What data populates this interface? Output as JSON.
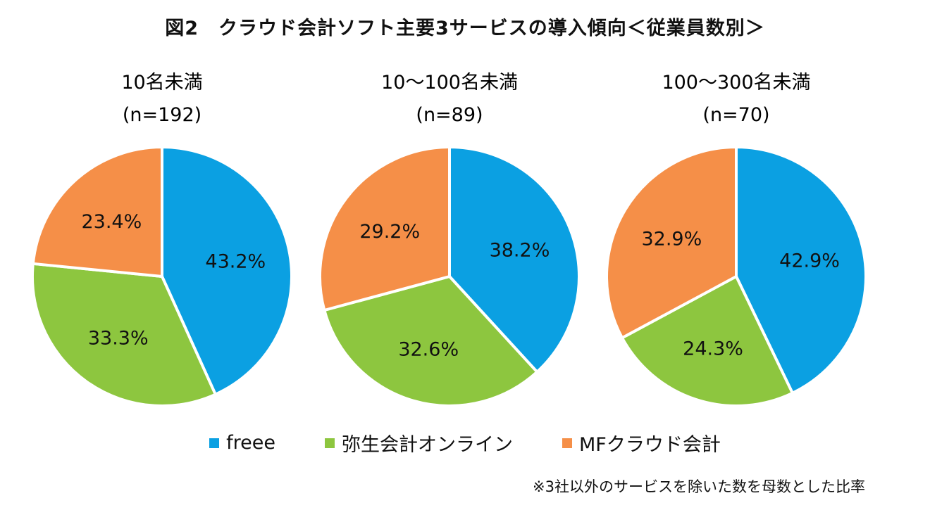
{
  "chart_data": {
    "type": "pie",
    "title": "図2　クラウド会計ソフト主要3サービスの導入傾向＜従業員数別＞",
    "series_names": [
      "freee",
      "弥生会計オンライン",
      "MFクラウド会計"
    ],
    "colors": [
      "#0ba0e2",
      "#8dc63f",
      "#f58f48"
    ],
    "legend_position": "bottom",
    "pies": [
      {
        "label": "10名未満",
        "n": "(n=192)",
        "values": [
          43.2,
          33.3,
          23.4
        ],
        "labels": [
          "43.2%",
          "33.3%",
          "23.4%"
        ]
      },
      {
        "label": "10～100名未満",
        "n": "(n=89)",
        "values": [
          38.2,
          32.6,
          29.2
        ],
        "labels": [
          "38.2%",
          "32.6%",
          "29.2%"
        ]
      },
      {
        "label": "100～300名未満",
        "n": "(n=70)",
        "values": [
          42.9,
          24.3,
          32.9
        ],
        "labels": [
          "42.9%",
          "24.3%",
          "32.9%"
        ]
      }
    ],
    "note": "※3社以外のサービスを除いた数を母数とした比率"
  }
}
